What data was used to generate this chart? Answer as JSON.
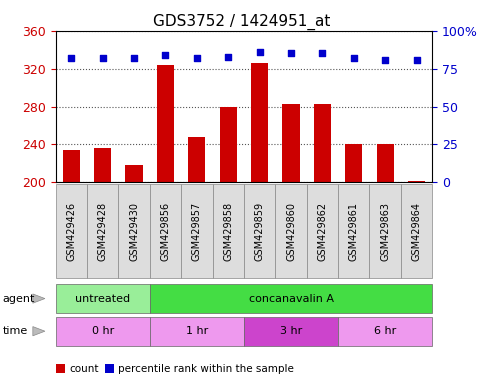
{
  "title": "GDS3752 / 1424951_at",
  "samples": [
    "GSM429426",
    "GSM429428",
    "GSM429430",
    "GSM429856",
    "GSM429857",
    "GSM429858",
    "GSM429859",
    "GSM429860",
    "GSM429862",
    "GSM429861",
    "GSM429863",
    "GSM429864"
  ],
  "counts": [
    234,
    236,
    218,
    324,
    248,
    280,
    326,
    283,
    283,
    240,
    240,
    202
  ],
  "percentile_ranks": [
    82,
    82,
    82,
    84,
    82,
    83,
    86,
    85,
    85,
    82,
    81,
    81
  ],
  "ylim_left": [
    200,
    360
  ],
  "ylim_right": [
    0,
    100
  ],
  "yticks_left": [
    200,
    240,
    280,
    320,
    360
  ],
  "yticks_right": [
    0,
    25,
    50,
    75,
    100
  ],
  "bar_color": "#cc0000",
  "dot_color": "#0000cc",
  "bar_bottom": 200,
  "agent_groups": [
    {
      "label": "untreated",
      "start": 0,
      "end": 3,
      "color": "#99ee99"
    },
    {
      "label": "concanavalin A",
      "start": 3,
      "end": 12,
      "color": "#44dd44"
    }
  ],
  "time_groups": [
    {
      "label": "0 hr",
      "start": 0,
      "end": 3,
      "color": "#ee99ee"
    },
    {
      "label": "1 hr",
      "start": 3,
      "end": 6,
      "color": "#ee99ee"
    },
    {
      "label": "3 hr",
      "start": 6,
      "end": 9,
      "color": "#cc44cc"
    },
    {
      "label": "6 hr",
      "start": 9,
      "end": 12,
      "color": "#ee99ee"
    }
  ],
  "legend_items": [
    {
      "label": "count",
      "color": "#cc0000"
    },
    {
      "label": "percentile rank within the sample",
      "color": "#0000cc"
    }
  ],
  "grid_color": "#555555",
  "tick_label_color_left": "#cc0000",
  "tick_label_color_right": "#0000cc",
  "title_fontsize": 11,
  "axis_fontsize": 9,
  "label_fontsize": 8,
  "background_color": "#ffffff",
  "plot_bg_color": "#ffffff",
  "sample_box_color": "#dddddd",
  "sample_box_edge": "#888888"
}
